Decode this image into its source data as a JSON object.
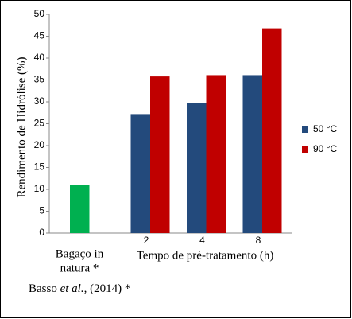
{
  "chart_data": {
    "type": "bar",
    "y_label": "Rendimento de Hidrólise (%)",
    "x_label": "Tempo de pré-tratamento (h)",
    "categories": [
      "2",
      "4",
      "8"
    ],
    "series": [
      {
        "name": "50 °C",
        "color": "#234a7c",
        "values": [
          27.2,
          29.7,
          36.1
        ]
      },
      {
        "name": "90 °C",
        "color": "#c00000",
        "values": [
          35.8,
          36.1,
          46.8
        ]
      }
    ],
    "reference": {
      "label": [
        "Bagaço in",
        "natura *"
      ],
      "value": 11,
      "color": "#00b050"
    },
    "ylim": [
      0,
      50
    ],
    "yticks": [
      0,
      5,
      10,
      15,
      20,
      25,
      30,
      35,
      40,
      45,
      50
    ],
    "legend": "right",
    "grid": false
  },
  "footnote": [
    "Basso ",
    "et al.",
    ", (2014) *"
  ]
}
